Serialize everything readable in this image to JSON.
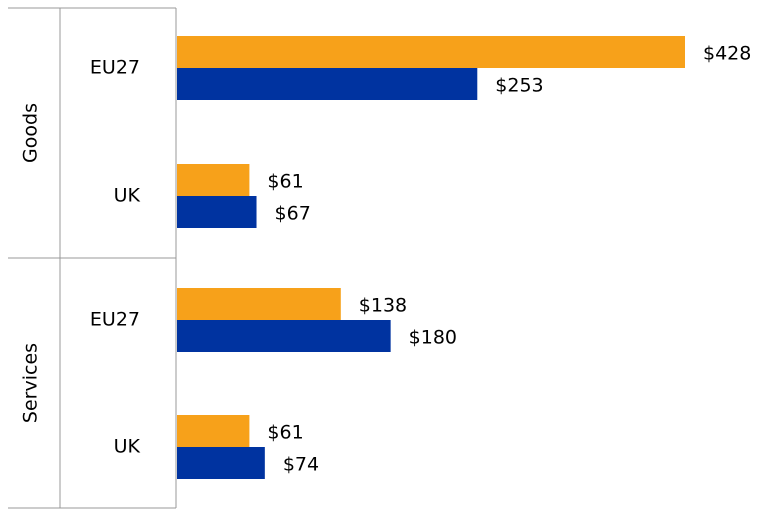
{
  "chart_data": {
    "type": "bar",
    "orientation": "horizontal",
    "groups": [
      {
        "name": "Goods",
        "categories": [
          {
            "name": "EU27",
            "values": [
              428,
              253
            ],
            "labels": [
              "$428",
              "$253"
            ]
          },
          {
            "name": "UK",
            "values": [
              61,
              67
            ],
            "labels": [
              "$61",
              "$67"
            ]
          }
        ]
      },
      {
        "name": "Services",
        "categories": [
          {
            "name": "EU27",
            "values": [
              138,
              180
            ],
            "labels": [
              "$138",
              "$180"
            ]
          },
          {
            "name": "UK",
            "values": [
              61,
              74
            ],
            "labels": [
              "$61",
              "$74"
            ]
          }
        ]
      }
    ],
    "series": [
      {
        "color": "#F7A11A"
      },
      {
        "color": "#0033A0"
      }
    ],
    "xlim": [
      0,
      428
    ],
    "grid": false,
    "legend": "none"
  }
}
